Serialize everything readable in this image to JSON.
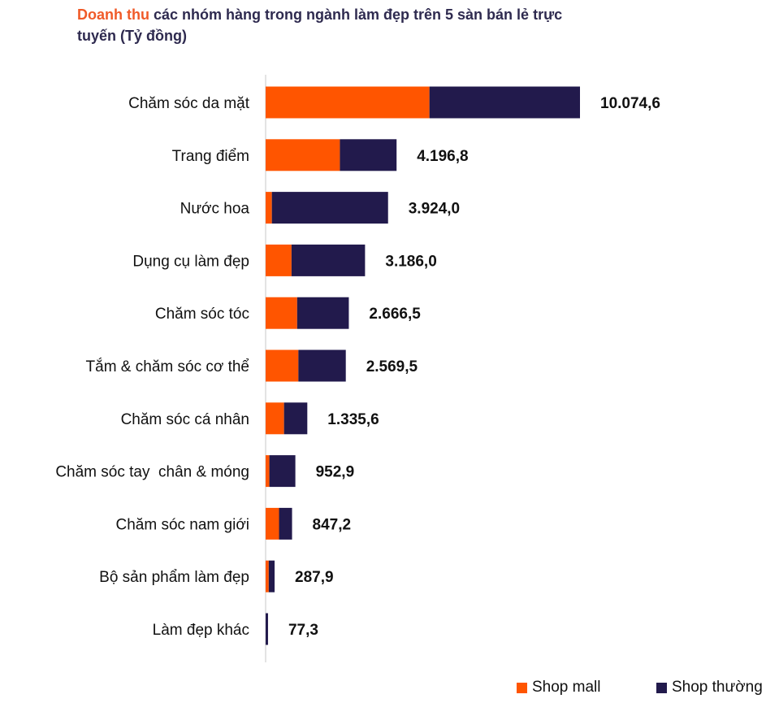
{
  "chart_data": {
    "type": "bar",
    "orientation": "horizontal",
    "stacked": true,
    "title_highlight": "Doanh thu",
    "title_rest": "các nhóm hàng trong ngành làm đẹp trên 5 sàn bán lẻ trực tuyến (Tỷ đồng)",
    "categories": [
      "Chăm sóc da mặt",
      "Trang điểm",
      "Nước hoa",
      "Dụng cụ làm đẹp",
      "Chăm sóc tóc",
      "Tắm & chăm sóc cơ thể",
      "Chăm sóc cá nhân",
      "Chăm sóc tay  chân & móng",
      "Chăm sóc nam giới",
      "Bộ sản phẩm làm đẹp",
      "Làm đẹp khác"
    ],
    "series": [
      {
        "name": "Shop mall",
        "color": "#ff5500",
        "values": [
          5250,
          2380,
          200,
          830,
          1010,
          1050,
          590,
          120,
          430,
          100,
          0
        ]
      },
      {
        "name": "Shop thường",
        "color": "#221a4c",
        "values": [
          4824.6,
          1816.8,
          3724.0,
          2356.0,
          1656.5,
          1519.5,
          745.6,
          832.9,
          417.2,
          187.9,
          77.3
        ]
      }
    ],
    "totals": [
      10074.6,
      4196.8,
      3924.0,
      3186.0,
      2666.5,
      2569.5,
      1335.6,
      952.9,
      847.2,
      287.9,
      77.3
    ],
    "total_labels": [
      "10.074,6",
      "4.196,8",
      "3.924,0",
      "3.186,0",
      "2.666,5",
      "2.569,5",
      "1.335,6",
      "952,9",
      "847,2",
      "287,9",
      "77,3"
    ],
    "xlim": [
      0,
      10074.6
    ],
    "legend_position": "bottom-right",
    "grid": false
  },
  "colors": {
    "title_highlight": "#f05a28",
    "title_text": "#2e2a4f",
    "axis": "#c8c8c8"
  }
}
